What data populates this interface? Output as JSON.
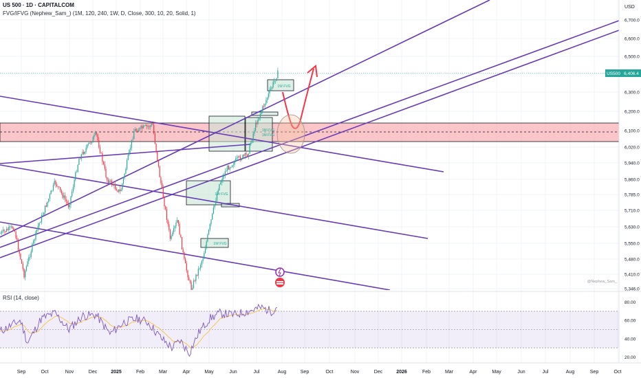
{
  "header": {
    "title": "US 500 · 1D · CAPITALCOM",
    "indicator": "FVG/IFVG (Nephew_Sam_) (1M, 120, 240, 1W, D, Close, 300, 10, 20, Solid, 1)",
    "currency": "USD"
  },
  "price_label": {
    "name": "US500",
    "value": "6,406.4"
  },
  "rsi": {
    "label": "RSI (14, close)",
    "ticks": [
      "80.00",
      "60.00",
      "40.00",
      "20.00"
    ],
    "band_upper": 70,
    "band_lower": 30,
    "band_mid": 50,
    "ylim": [
      18,
      82
    ],
    "current": 76
  },
  "watermark": "@Nephew_Sam_",
  "fvg_labels": {
    "d_fvg": "1W FVG",
    "w1": "1W FVG",
    "w2": "1M FVG",
    "w3": "1W FVG",
    "m_fvg": "1W FVG",
    "stacked": "1M FVG\n1M FVG"
  },
  "chart_data": {
    "type": "candlestick",
    "symbol": "US 500",
    "interval": "1D",
    "ylim": [
      5346,
      6785
    ],
    "y_ticks": [
      "6,700.0",
      "6,600.0",
      "6,500.0",
      "6,400.0",
      "6,300.0",
      "6,200.0",
      "6,100.0",
      "6,020.0",
      "5,940.0",
      "5,860.0",
      "5,785.0",
      "5,710.0",
      "5,630.0",
      "5,550.0",
      "5,480.0",
      "5,410.0",
      "5,346.0"
    ],
    "x_ticks": [
      "Sep",
      "Oct",
      "Nov",
      "Dec",
      "2025",
      "Feb",
      "Mar",
      "Apr",
      "May",
      "Jun",
      "Jul",
      "Aug",
      "Sep",
      "Oct",
      "Nov",
      "Dec",
      "2026",
      "Feb",
      "Mar",
      "Apr",
      "May",
      "Jun",
      "Jul",
      "Aug",
      "Sep",
      "Oct"
    ],
    "monthly_path": [
      [
        0,
        5600
      ],
      [
        1,
        5700
      ],
      [
        2,
        5840
      ],
      [
        3,
        6060
      ],
      [
        4,
        5960
      ],
      [
        5,
        6110
      ],
      [
        6,
        5900
      ],
      [
        7,
        5540
      ],
      [
        8,
        5750
      ],
      [
        9,
        5980
      ],
      [
        10,
        6200
      ],
      [
        11,
        6406
      ]
    ],
    "last_price": 6406.4,
    "demand_zone": [
      6050,
      6135
    ],
    "projected_path": [
      [
        6406,
        "Jul"
      ],
      [
        6150,
        "Aug"
      ],
      [
        6560,
        "Aug-late"
      ]
    ]
  }
}
